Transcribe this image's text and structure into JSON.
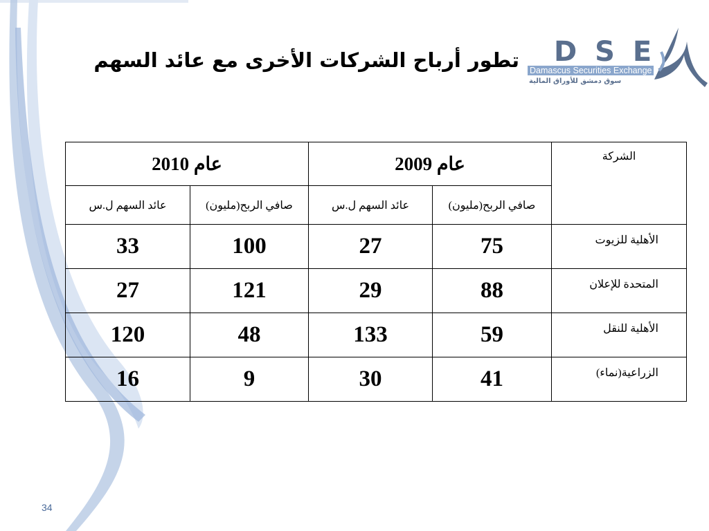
{
  "header": {
    "title": "تطور أرباح الشركات الأخرى مع عائد السهم"
  },
  "logo": {
    "letters": "D S E",
    "name": "Damascus Securities Exchange",
    "name_ar": "سوق دمشق للأوراق المالية"
  },
  "table": {
    "corner": "الشركة",
    "years": [
      "عام 2009",
      "عام 2010"
    ],
    "subheaders": [
      "صافي الربح(مليون)",
      "عائد السهم ل.س",
      "صافي الربح(مليون)",
      "عائد السهم ل.س"
    ],
    "rows": [
      [
        "الأهلية للزيوت",
        75,
        27,
        100,
        33
      ],
      [
        "المتحدة للإعلان",
        88,
        29,
        121,
        27
      ],
      [
        "الأهلية للنقل",
        59,
        133,
        48,
        120
      ],
      [
        "الزراعية(نماء)",
        41,
        30,
        9,
        16
      ]
    ]
  },
  "page_number": "34"
}
